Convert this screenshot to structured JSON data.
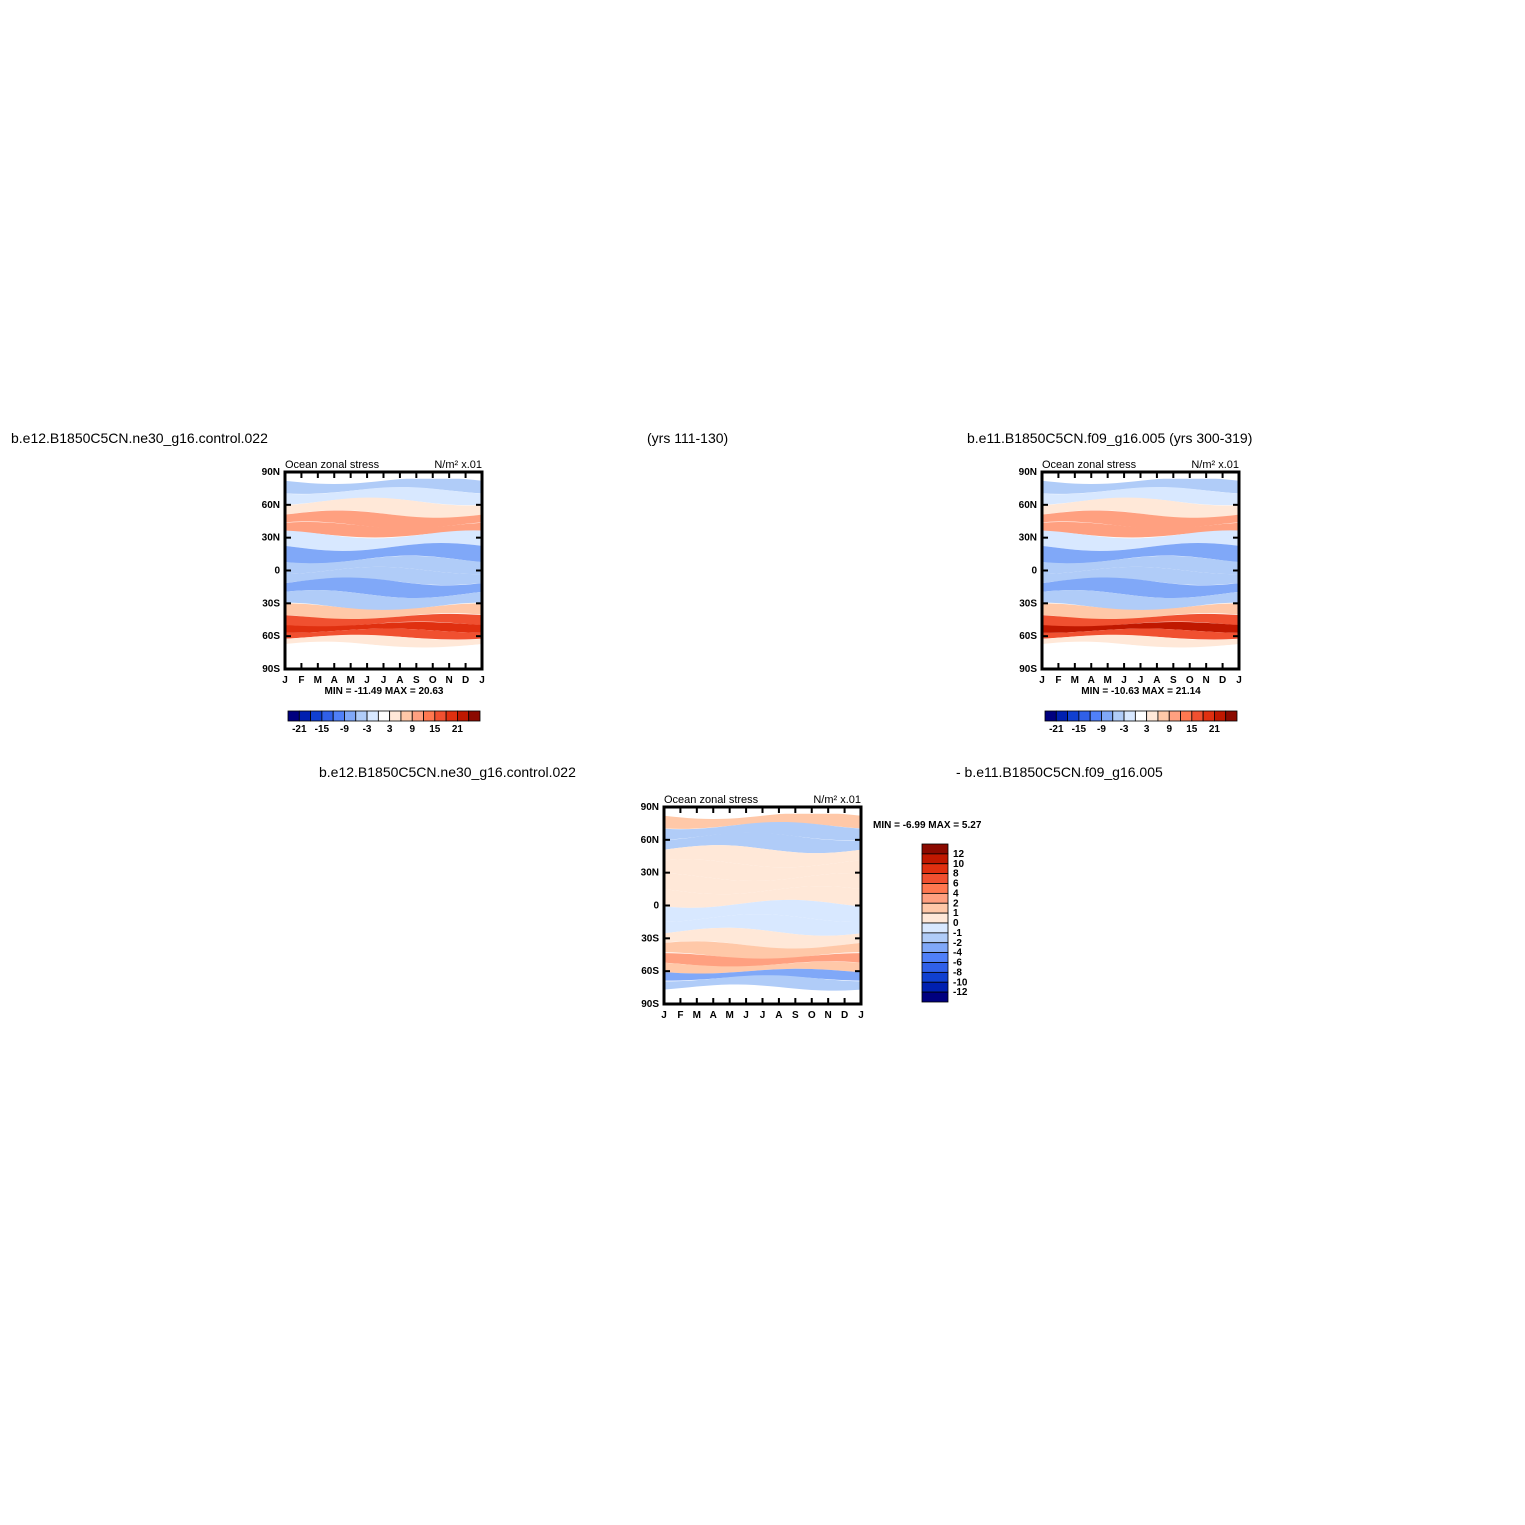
{
  "titles": {
    "case1": "b.e12.B1850C5CN.ne30_g16.control.022",
    "years1": "(yrs 111-130)",
    "case2_years": "b.e11.B1850C5CN.f09_g16.005 (yrs 300-319)",
    "diff_left": "b.e12.B1850C5CN.ne30_g16.control.022",
    "diff_right": "- b.e11.B1850C5CN.f09_g16.005"
  },
  "colors": {
    "main_scale": [
      "#00007f",
      "#0020b0",
      "#1040d0",
      "#3060e8",
      "#5080f8",
      "#80a8f8",
      "#b0ccf8",
      "#d8e8ff",
      "#ffffff",
      "#ffe8d8",
      "#ffc8a8",
      "#ffa080",
      "#ff7850",
      "#f05030",
      "#e03010",
      "#c01800",
      "#8b0a00"
    ],
    "diff_scale": [
      "#00007f",
      "#0020b0",
      "#1040d0",
      "#3060e8",
      "#5080f8",
      "#80a8f8",
      "#b0ccf8",
      "#d8e8ff",
      "#ffe8d8",
      "#ffc8a8",
      "#ffa080",
      "#ff7850",
      "#f05030",
      "#e03010",
      "#c01800",
      "#8b0a00"
    ]
  },
  "chart_data": [
    {
      "type": "heatmap",
      "title": "Ocean zonal stress",
      "units": "N/m² x.01",
      "x_ticks": [
        "J",
        "F",
        "M",
        "A",
        "M",
        "J",
        "J",
        "A",
        "S",
        "O",
        "N",
        "D",
        "J"
      ],
      "y_ticks": [
        "90N",
        "60N",
        "30N",
        "0",
        "30S",
        "60S",
        "90S"
      ],
      "ylim": [
        -90,
        90
      ],
      "stats": "MIN = -11.49 MAX =  20.63",
      "legend_ticks": [
        "-21",
        "-15",
        "-9",
        "-3",
        "3",
        "9",
        "15",
        "21"
      ],
      "bands": [
        {
          "lat": 78,
          "value": -4
        },
        {
          "lat": 68,
          "value": -2
        },
        {
          "lat": 58,
          "value": 3
        },
        {
          "lat": 45,
          "value": 9
        },
        {
          "lat": 38,
          "value": 7
        },
        {
          "lat": 28,
          "value": -2
        },
        {
          "lat": 15,
          "value": -6
        },
        {
          "lat": 5,
          "value": -3
        },
        {
          "lat": -5,
          "value": -3
        },
        {
          "lat": -15,
          "value": -7
        },
        {
          "lat": -28,
          "value": -3
        },
        {
          "lat": -38,
          "value": 6
        },
        {
          "lat": -46,
          "value": 13
        },
        {
          "lat": -52,
          "value": 18
        },
        {
          "lat": -58,
          "value": 14
        },
        {
          "lat": -64,
          "value": 3
        },
        {
          "lat": -72,
          "value": -1
        }
      ]
    },
    {
      "type": "heatmap",
      "title": "Ocean zonal stress",
      "units": "N/m² x.01",
      "x_ticks": [
        "J",
        "F",
        "M",
        "A",
        "M",
        "J",
        "J",
        "A",
        "S",
        "O",
        "N",
        "D",
        "J"
      ],
      "y_ticks": [
        "90N",
        "60N",
        "30N",
        "0",
        "30S",
        "60S",
        "90S"
      ],
      "ylim": [
        -90,
        90
      ],
      "stats": "MIN = -10.63 MAX =  21.14",
      "legend_ticks": [
        "-21",
        "-15",
        "-9",
        "-3",
        "3",
        "9",
        "15",
        "21"
      ],
      "bands": [
        {
          "lat": 78,
          "value": -4
        },
        {
          "lat": 68,
          "value": -2
        },
        {
          "lat": 58,
          "value": 3
        },
        {
          "lat": 45,
          "value": 9
        },
        {
          "lat": 38,
          "value": 7
        },
        {
          "lat": 28,
          "value": -2
        },
        {
          "lat": 15,
          "value": -6
        },
        {
          "lat": 5,
          "value": -3
        },
        {
          "lat": -5,
          "value": -3
        },
        {
          "lat": -15,
          "value": -7
        },
        {
          "lat": -28,
          "value": -3
        },
        {
          "lat": -38,
          "value": 6
        },
        {
          "lat": -46,
          "value": 13
        },
        {
          "lat": -52,
          "value": 19
        },
        {
          "lat": -58,
          "value": 14
        },
        {
          "lat": -64,
          "value": 3
        },
        {
          "lat": -72,
          "value": -1
        }
      ]
    },
    {
      "type": "heatmap",
      "title": "Ocean zonal stress",
      "units": "N/m² x.01",
      "x_ticks": [
        "J",
        "F",
        "M",
        "A",
        "M",
        "J",
        "J",
        "A",
        "S",
        "O",
        "N",
        "D",
        "J"
      ],
      "y_ticks": [
        "90N",
        "60N",
        "30N",
        "0",
        "30S",
        "60S",
        "90S"
      ],
      "ylim": [
        -90,
        90
      ],
      "stats": "MIN =   -6.99 MAX =    5.27",
      "legend_ticks": [
        "12",
        "10",
        "8",
        "6",
        "4",
        "2",
        "1",
        "0",
        "-1",
        "-2",
        "-4",
        "-6",
        "-8",
        "-10",
        "-12"
      ],
      "bands": [
        {
          "lat": 78,
          "value": 2
        },
        {
          "lat": 68,
          "value": -1
        },
        {
          "lat": 58,
          "value": -1
        },
        {
          "lat": 45,
          "value": 0.5
        },
        {
          "lat": 32,
          "value": 0.5
        },
        {
          "lat": 20,
          "value": 0.5
        },
        {
          "lat": 8,
          "value": 0.5
        },
        {
          "lat": -5,
          "value": -0.5
        },
        {
          "lat": -18,
          "value": -0.5
        },
        {
          "lat": -30,
          "value": 0.5
        },
        {
          "lat": -42,
          "value": 1.5
        },
        {
          "lat": -50,
          "value": 3
        },
        {
          "lat": -57,
          "value": 1.5
        },
        {
          "lat": -63,
          "value": -2
        },
        {
          "lat": -70,
          "value": -1
        }
      ]
    }
  ]
}
